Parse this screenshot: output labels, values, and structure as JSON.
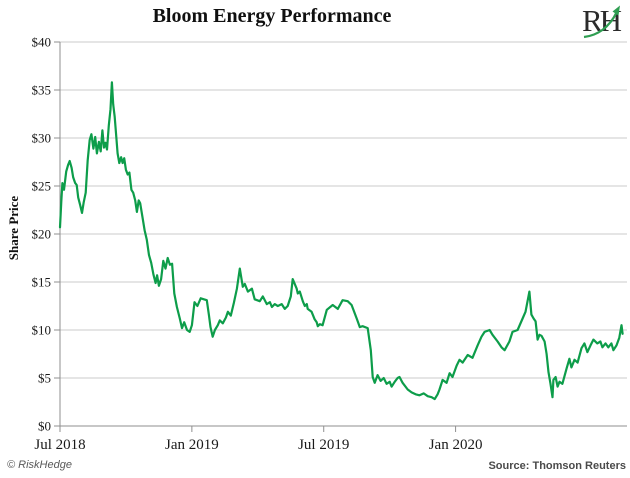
{
  "header": {
    "title": "Bloom Energy Performance",
    "logo_text": "RH"
  },
  "footer": {
    "left": "© RiskHedge",
    "right": "Source: Thomson Reuters"
  },
  "chart_data": {
    "type": "line",
    "title": "Bloom Energy Performance",
    "ylabel": "Share Price",
    "xlabel": "",
    "x_unit": "months since Jul 2018",
    "xlim": [
      0,
      25.8
    ],
    "ylim": [
      0,
      40
    ],
    "grid": "horizontal",
    "legend": "none",
    "line_color": "#0d9d4a",
    "grid_color": "#cbcbcb",
    "axis_color": "#8f8f8f",
    "tick_label_color": "#1a1a1a",
    "y_ticks": [
      {
        "v": 0,
        "label": "$0"
      },
      {
        "v": 5,
        "label": "$5"
      },
      {
        "v": 10,
        "label": "$10"
      },
      {
        "v": 15,
        "label": "$15"
      },
      {
        "v": 20,
        "label": "$20"
      },
      {
        "v": 25,
        "label": "$25"
      },
      {
        "v": 30,
        "label": "$30"
      },
      {
        "v": 35,
        "label": "$35"
      },
      {
        "v": 40,
        "label": "$40"
      }
    ],
    "x_ticks": [
      {
        "v": 0,
        "label": "Jul 2018"
      },
      {
        "v": 6,
        "label": "Jan 2019"
      },
      {
        "v": 12,
        "label": "Jul 2019"
      },
      {
        "v": 18,
        "label": "Jan 2020"
      }
    ],
    "source": "Thomson Reuters",
    "series": [
      {
        "name": "Bloom Energy share price",
        "points": [
          [
            0,
            20.7
          ],
          [
            0.06,
            23.4
          ],
          [
            0.11,
            25.3
          ],
          [
            0.18,
            24.6
          ],
          [
            0.28,
            26.5
          ],
          [
            0.37,
            27.2
          ],
          [
            0.44,
            27.6
          ],
          [
            0.53,
            26.9
          ],
          [
            0.6,
            25.9
          ],
          [
            0.69,
            25.3
          ],
          [
            0.76,
            25.1
          ],
          [
            0.83,
            23.8
          ],
          [
            0.92,
            23
          ],
          [
            1,
            22.2
          ],
          [
            1.08,
            23.3
          ],
          [
            1.17,
            24.3
          ],
          [
            1.26,
            27.7
          ],
          [
            1.35,
            29.8
          ],
          [
            1.43,
            30.4
          ],
          [
            1.52,
            28.9
          ],
          [
            1.6,
            30.1
          ],
          [
            1.68,
            28.4
          ],
          [
            1.77,
            29.6
          ],
          [
            1.85,
            28.6
          ],
          [
            1.93,
            30.8
          ],
          [
            2,
            29
          ],
          [
            2.07,
            29.5
          ],
          [
            2.14,
            28.8
          ],
          [
            2.22,
            31.3
          ],
          [
            2.3,
            33
          ],
          [
            2.36,
            35.8
          ],
          [
            2.42,
            33.5
          ],
          [
            2.49,
            32.2
          ],
          [
            2.55,
            30.5
          ],
          [
            2.62,
            28.4
          ],
          [
            2.7,
            27.4
          ],
          [
            2.78,
            28
          ],
          [
            2.85,
            27.4
          ],
          [
            2.92,
            27.9
          ],
          [
            3,
            26.7
          ],
          [
            3.08,
            26.2
          ],
          [
            3.16,
            26.4
          ],
          [
            3.25,
            24.6
          ],
          [
            3.33,
            24.3
          ],
          [
            3.42,
            23.5
          ],
          [
            3.5,
            22.3
          ],
          [
            3.58,
            23.5
          ],
          [
            3.65,
            23.2
          ],
          [
            3.75,
            21.8
          ],
          [
            3.85,
            20.4
          ],
          [
            3.95,
            19.4
          ],
          [
            4.05,
            17.8
          ],
          [
            4.15,
            17
          ],
          [
            4.25,
            15.8
          ],
          [
            4.35,
            14.9
          ],
          [
            4.42,
            15.7
          ],
          [
            4.5,
            14.6
          ],
          [
            4.6,
            15.3
          ],
          [
            4.7,
            17.2
          ],
          [
            4.8,
            16.4
          ],
          [
            4.9,
            17.5
          ],
          [
            5,
            16.8
          ],
          [
            5.1,
            16.9
          ],
          [
            5.2,
            13.8
          ],
          [
            5.32,
            12.4
          ],
          [
            5.45,
            11.2
          ],
          [
            5.55,
            10.2
          ],
          [
            5.65,
            10.8
          ],
          [
            5.78,
            10
          ],
          [
            5.9,
            9.8
          ],
          [
            6,
            10.5
          ],
          [
            6.12,
            12.9
          ],
          [
            6.25,
            12.5
          ],
          [
            6.4,
            13.3
          ],
          [
            6.55,
            13.2
          ],
          [
            6.68,
            13.1
          ],
          [
            6.78,
            11.5
          ],
          [
            6.85,
            10.3
          ],
          [
            6.95,
            9.3
          ],
          [
            7.05,
            10
          ],
          [
            7.18,
            10.5
          ],
          [
            7.27,
            11
          ],
          [
            7.41,
            10.7
          ],
          [
            7.55,
            11.3
          ],
          [
            7.64,
            11.9
          ],
          [
            7.77,
            11.5
          ],
          [
            7.91,
            12.8
          ],
          [
            8.05,
            14.3
          ],
          [
            8.18,
            16.4
          ],
          [
            8.32,
            14.5
          ],
          [
            8.41,
            14.8
          ],
          [
            8.55,
            14
          ],
          [
            8.73,
            14.3
          ],
          [
            8.86,
            13.2
          ],
          [
            9.09,
            13
          ],
          [
            9.23,
            13.5
          ],
          [
            9.41,
            12.7
          ],
          [
            9.55,
            12.9
          ],
          [
            9.64,
            12.4
          ],
          [
            9.77,
            12.7
          ],
          [
            9.91,
            12.5
          ],
          [
            10.09,
            12.7
          ],
          [
            10.23,
            12.2
          ],
          [
            10.36,
            12.5
          ],
          [
            10.5,
            13.5
          ],
          [
            10.59,
            15.3
          ],
          [
            10.77,
            14.3
          ],
          [
            10.82,
            13.8
          ],
          [
            10.91,
            14
          ],
          [
            11.05,
            13
          ],
          [
            11.14,
            12.5
          ],
          [
            11.23,
            12.7
          ],
          [
            11.27,
            12.2
          ],
          [
            11.45,
            11.9
          ],
          [
            11.59,
            11.1
          ],
          [
            11.68,
            10.8
          ],
          [
            11.73,
            10.4
          ],
          [
            11.82,
            10.6
          ],
          [
            11.95,
            10.5
          ],
          [
            12.14,
            12.1
          ],
          [
            12.41,
            12.6
          ],
          [
            12.64,
            12.2
          ],
          [
            12.86,
            13.1
          ],
          [
            13.09,
            13
          ],
          [
            13.27,
            12.6
          ],
          [
            13.5,
            11.2
          ],
          [
            13.64,
            10.3
          ],
          [
            13.77,
            10.4
          ],
          [
            14,
            10.2
          ],
          [
            14.14,
            7.9
          ],
          [
            14.23,
            5.1
          ],
          [
            14.32,
            4.5
          ],
          [
            14.45,
            5.3
          ],
          [
            14.59,
            4.7
          ],
          [
            14.73,
            5
          ],
          [
            14.86,
            4.4
          ],
          [
            15,
            4.6
          ],
          [
            15.09,
            4.1
          ],
          [
            15.23,
            4.6
          ],
          [
            15.36,
            5
          ],
          [
            15.45,
            5.1
          ],
          [
            15.59,
            4.5
          ],
          [
            15.82,
            3.8
          ],
          [
            16,
            3.5
          ],
          [
            16.18,
            3.3
          ],
          [
            16.36,
            3.2
          ],
          [
            16.55,
            3.4
          ],
          [
            16.73,
            3.1
          ],
          [
            16.91,
            3
          ],
          [
            17.05,
            2.8
          ],
          [
            17.18,
            3.3
          ],
          [
            17.27,
            3.8
          ],
          [
            17.41,
            4.8
          ],
          [
            17.59,
            4.5
          ],
          [
            17.73,
            5.5
          ],
          [
            17.86,
            5.1
          ],
          [
            18.05,
            6.3
          ],
          [
            18.18,
            6.9
          ],
          [
            18.32,
            6.6
          ],
          [
            18.55,
            7.4
          ],
          [
            18.77,
            7.1
          ],
          [
            19,
            8.4
          ],
          [
            19.18,
            9.3
          ],
          [
            19.32,
            9.8
          ],
          [
            19.55,
            10
          ],
          [
            19.68,
            9.5
          ],
          [
            19.91,
            8.8
          ],
          [
            20.09,
            8.2
          ],
          [
            20.23,
            7.9
          ],
          [
            20.45,
            8.8
          ],
          [
            20.59,
            9.8
          ],
          [
            20.82,
            10
          ],
          [
            21.05,
            11.2
          ],
          [
            21.18,
            11.9
          ],
          [
            21.36,
            14
          ],
          [
            21.45,
            11.6
          ],
          [
            21.55,
            11.2
          ],
          [
            21.64,
            10.9
          ],
          [
            21.73,
            9
          ],
          [
            21.82,
            9.5
          ],
          [
            21.91,
            9.4
          ],
          [
            22.05,
            8.8
          ],
          [
            22.14,
            7.5
          ],
          [
            22.23,
            5.6
          ],
          [
            22.32,
            4.4
          ],
          [
            22.41,
            3
          ],
          [
            22.45,
            4.8
          ],
          [
            22.55,
            5.1
          ],
          [
            22.64,
            4.1
          ],
          [
            22.73,
            4.6
          ],
          [
            22.86,
            4.4
          ],
          [
            23.05,
            6
          ],
          [
            23.18,
            7
          ],
          [
            23.27,
            6.1
          ],
          [
            23.41,
            6.9
          ],
          [
            23.55,
            6.6
          ],
          [
            23.73,
            8.1
          ],
          [
            23.86,
            8.6
          ],
          [
            24,
            7.7
          ],
          [
            24.14,
            8.4
          ],
          [
            24.27,
            9
          ],
          [
            24.45,
            8.6
          ],
          [
            24.59,
            8.8
          ],
          [
            24.68,
            8.2
          ],
          [
            24.82,
            8.6
          ],
          [
            24.95,
            8.2
          ],
          [
            25.09,
            8.6
          ],
          [
            25.18,
            7.9
          ],
          [
            25.32,
            8.4
          ],
          [
            25.45,
            9.2
          ],
          [
            25.55,
            10.5
          ],
          [
            25.6,
            9.6
          ]
        ]
      }
    ]
  }
}
